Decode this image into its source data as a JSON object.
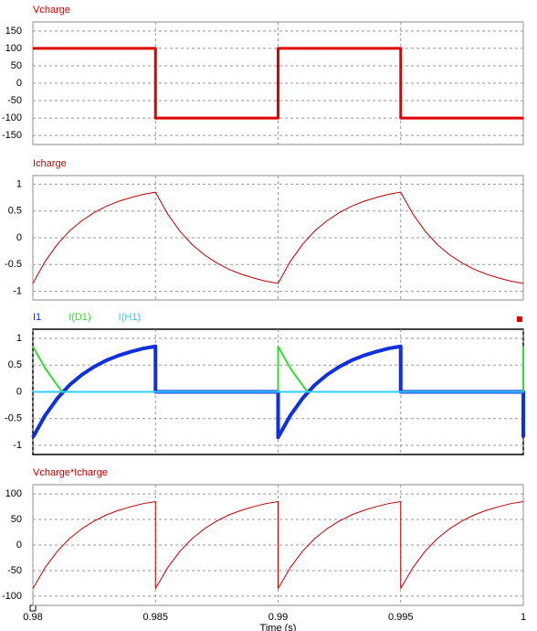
{
  "chart_data": [
    {
      "type": "line",
      "xlim": [
        0.98,
        1
      ],
      "ylim": [
        -176,
        176
      ],
      "xticks": [
        0.98,
        0.985,
        0.99,
        0.995,
        1
      ],
      "yticks": [
        150,
        100,
        50,
        0,
        -50,
        -100,
        -150
      ],
      "grid": true,
      "series": [
        {
          "name": "Vcharge",
          "color": "#e00000",
          "line_width": 3,
          "x": [
            0.98,
            0.985,
            0.985,
            0.99,
            0.99,
            0.995,
            0.995,
            1
          ],
          "values": [
            100,
            100,
            -100,
            -100,
            100,
            100,
            -100,
            -100
          ]
        }
      ]
    },
    {
      "type": "line",
      "xlim": [
        0.98,
        1
      ],
      "ylim": [
        -1.16,
        1.16
      ],
      "xticks": [
        0.98,
        0.985,
        0.99,
        0.995,
        1
      ],
      "yticks": [
        1,
        0.5,
        0,
        -0.5,
        -1
      ],
      "grid": true,
      "series": [
        {
          "name": "Icharge",
          "color": "#c00000",
          "line_width": 1,
          "x": [
            0.98,
            0.9805,
            0.981,
            0.9815,
            0.982,
            0.9825,
            0.983,
            0.9835,
            0.984,
            0.9845,
            0.985,
            0.9855,
            0.986,
            0.9865,
            0.987,
            0.9875,
            0.988,
            0.9885,
            0.989,
            0.9895,
            0.99,
            0.9905,
            0.991,
            0.9915,
            0.992,
            0.9925,
            0.993,
            0.9935,
            0.994,
            0.9945,
            0.995,
            0.9955,
            0.996,
            0.9965,
            0.997,
            0.9975,
            0.998,
            0.9985,
            0.999,
            0.9995,
            1
          ],
          "values": [
            -0.85,
            -0.44,
            -0.12,
            0.13,
            0.32,
            0.47,
            0.59,
            0.68,
            0.75,
            0.81,
            0.85,
            0.44,
            0.12,
            -0.13,
            -0.32,
            -0.47,
            -0.59,
            -0.68,
            -0.75,
            -0.81,
            -0.85,
            -0.44,
            -0.12,
            0.13,
            0.32,
            0.47,
            0.59,
            0.68,
            0.75,
            0.81,
            0.85,
            0.44,
            0.12,
            -0.13,
            -0.32,
            -0.47,
            -0.59,
            -0.68,
            -0.75,
            -0.81,
            -0.85
          ]
        }
      ]
    },
    {
      "type": "line",
      "xlim": [
        0.98,
        1
      ],
      "ylim": [
        -1.17,
        1.17
      ],
      "xticks": [
        0.98,
        0.985,
        0.99,
        0.995,
        1
      ],
      "yticks": [
        1,
        0.5,
        0,
        -0.5,
        -1
      ],
      "grid": true,
      "series": [
        {
          "name": "I1",
          "color": "#1030e0",
          "line_width": 4,
          "x": [
            0.98,
            0.9805,
            0.981,
            0.9815,
            0.982,
            0.9825,
            0.983,
            0.9835,
            0.984,
            0.9845,
            0.985,
            0.985,
            0.99,
            0.99,
            0.9905,
            0.991,
            0.9915,
            0.992,
            0.9925,
            0.993,
            0.9935,
            0.994,
            0.9945,
            0.995,
            0.995,
            1,
            1
          ],
          "values": [
            -0.85,
            -0.44,
            -0.12,
            0.13,
            0.32,
            0.47,
            0.59,
            0.68,
            0.75,
            0.81,
            0.85,
            0,
            0,
            -0.85,
            -0.44,
            -0.12,
            0.13,
            0.32,
            0.47,
            0.59,
            0.68,
            0.75,
            0.81,
            0.85,
            0,
            0,
            -0.85
          ]
        },
        {
          "name": "I(D1)",
          "color": "#33dd33",
          "line_width": 2,
          "x": [
            0.98,
            0.9805,
            0.981,
            0.9812,
            0.99,
            0.99,
            0.9905,
            0.991,
            0.9912,
            1,
            1
          ],
          "values": [
            0.85,
            0.44,
            0.12,
            0,
            0,
            0.85,
            0.44,
            0.12,
            0,
            0,
            0.85
          ]
        },
        {
          "name": "I(H1)",
          "color": "#33ccff",
          "line_width": 2,
          "x": [
            0.98,
            1
          ],
          "values": [
            0,
            0
          ]
        }
      ]
    },
    {
      "type": "line",
      "xlim": [
        0.98,
        1
      ],
      "ylim": [
        -118,
        118
      ],
      "xlabel": "Time (s)",
      "xticks": [
        0.98,
        0.985,
        0.99,
        0.995,
        1
      ],
      "yticks": [
        100,
        50,
        0,
        -50,
        -100
      ],
      "grid": true,
      "series": [
        {
          "name": "Vcharge*Icharge",
          "color": "#c00000",
          "line_width": 1,
          "x": [
            0.98,
            0.9805,
            0.981,
            0.9815,
            0.982,
            0.9825,
            0.983,
            0.9835,
            0.984,
            0.9845,
            0.985,
            0.985,
            0.9855,
            0.986,
            0.9865,
            0.987,
            0.9875,
            0.988,
            0.9885,
            0.989,
            0.9895,
            0.99,
            0.99,
            0.9905,
            0.991,
            0.9915,
            0.992,
            0.9925,
            0.993,
            0.9935,
            0.994,
            0.9945,
            0.995,
            0.995,
            0.9955,
            0.996,
            0.9965,
            0.997,
            0.9975,
            0.998,
            0.9985,
            0.999,
            0.9995,
            1
          ],
          "values": [
            -85,
            -44,
            -12,
            13,
            32,
            47,
            59,
            68,
            75,
            81,
            85,
            -85,
            -44,
            -12,
            13,
            32,
            47,
            59,
            68,
            75,
            81,
            85,
            -85,
            -44,
            -12,
            13,
            32,
            47,
            59,
            68,
            75,
            81,
            85,
            -85,
            -44,
            -12,
            13,
            32,
            47,
            59,
            68,
            75,
            81,
            85
          ]
        }
      ]
    }
  ]
}
